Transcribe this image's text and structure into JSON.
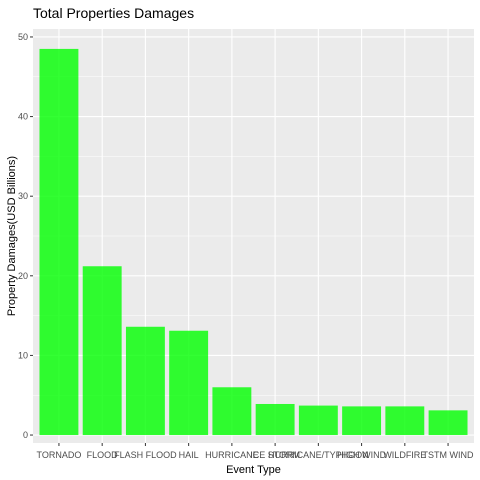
{
  "chart_data": {
    "type": "bar",
    "title": "Total Properties Damages",
    "xlabel": "Event Type",
    "ylabel": "Property Damages(USD Billions)",
    "categories": [
      "TORNADO",
      "FLOOD",
      "FLASH FLOOD",
      "HAIL",
      "HURRICANE",
      "ICE STORM",
      "HURRICANE/TYPHOON",
      "HIGH WIND",
      "WILDFIRE",
      "TSTM WIND"
    ],
    "values": [
      48.5,
      21.2,
      13.6,
      13.1,
      6.0,
      3.9,
      3.7,
      3.6,
      3.6,
      3.1
    ],
    "ylim": [
      -1,
      51
    ],
    "yticks": [
      0,
      10,
      20,
      30,
      40,
      50
    ],
    "grid": true,
    "colors": {
      "bar": "#00ff00",
      "panel": "#ebebeb",
      "grid": "#ffffff"
    }
  }
}
